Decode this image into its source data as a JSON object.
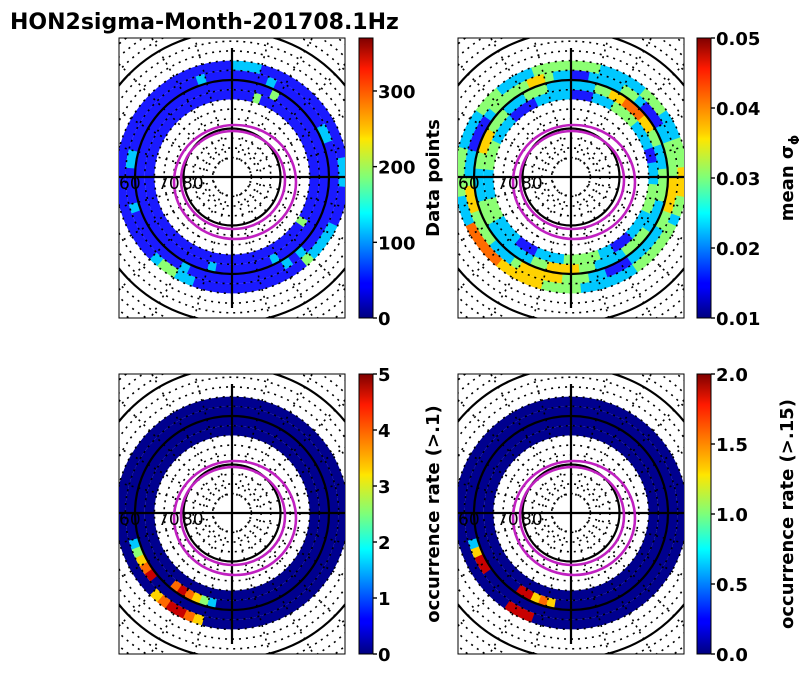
{
  "title": "HON2sigma-Month-201708.1Hz",
  "chart_data": [
    {
      "type": "polar-grid",
      "name": "data-points",
      "colorbar": {
        "label": "Data points",
        "min": 0,
        "max": 370,
        "ticks": [
          {
            "v": 0,
            "t": "0"
          },
          {
            "v": 100,
            "t": "100"
          },
          {
            "v": 200,
            "t": "200"
          },
          {
            "v": 300,
            "t": "300"
          }
        ]
      },
      "lat_labels": [
        "60",
        "70",
        "80"
      ],
      "colors": {
        "0": "#1a1aff",
        "1": "#00c8ff",
        "2": "#8cff73",
        "3": "#ffd200"
      },
      "rings": [
        {
          "r_lat": 66,
          "cells": "111000000000000011100001111200000000000011221000000000000000000000000000"
        },
        {
          "r_lat": 68,
          "cells": "000010000000110000000000000101000000000001000000001000011000000000001000"
        },
        {
          "r_lat": 70,
          "cells": "000002000000000000000000000000100000001000000000000000000000000000000000"
        },
        {
          "r_lat": 72,
          "cells": "000200000000000000000000200000000000000000000000000000000000000000000000"
        }
      ]
    },
    {
      "type": "polar-grid",
      "name": "mean-sigma-phi",
      "colorbar": {
        "label": "mean σ",
        "label_sub": "ϕ",
        "min": 0.01,
        "max": 0.05,
        "ticks": [
          {
            "v": 0.01,
            "t": "0.01"
          },
          {
            "v": 0.02,
            "t": "0.02"
          },
          {
            "v": 0.03,
            "t": "0.03"
          },
          {
            "v": 0.04,
            "t": "0.04"
          },
          {
            "v": 0.05,
            "t": "0.05"
          }
        ]
      },
      "lat_labels": [
        "60",
        "70",
        "80"
      ],
      "colors": {
        "0": "#1a1aff",
        "1": "#00c8ff",
        "2": "#8cff73",
        "3": "#ffd200",
        "4": "#ff6a00",
        "5": "#c80000"
      },
      "rings": [
        {
          "r_lat": 66,
          "cells": "222111112221112223332212222221111112222333334444411122222111122211112222"
        },
        {
          "r_lat": 68,
          "cells": "001111221000112222333322111110001122233333211122223332111000012222233211"
        },
        {
          "r_lat": 70,
          "cells": "111223344433221112222111122221111223333221111111222111122333222111222111"
        },
        {
          "r_lat": 72,
          "cells": "000111222211110011122221111000112222211110001111222111122221111000011111"
        }
      ]
    },
    {
      "type": "polar-grid",
      "name": "occurrence-rate-01",
      "colorbar": {
        "label": "occurrence rate (>.1)",
        "min": 0,
        "max": 5,
        "ticks": [
          {
            "v": 0,
            "t": "0"
          },
          {
            "v": 1,
            "t": "1"
          },
          {
            "v": 2,
            "t": "2"
          },
          {
            "v": 3,
            "t": "3"
          },
          {
            "v": 4,
            "t": "4"
          },
          {
            "v": 5,
            "t": "5"
          }
        ]
      },
      "lat_labels": [
        "60",
        "70",
        "80"
      ],
      "colors": {
        "0": "#00008f",
        "1": "#00c8ff",
        "2": "#8cff73",
        "3": "#ffd200",
        "4": "#ff6a00",
        "5": "#c80000"
      },
      "rings": [
        {
          "r_lat": 66,
          "cells": "000000000000000000000000000000000000000345543000000000000000000000000000"
        },
        {
          "r_lat": 68,
          "cells": "000000000000000000000000000000000000000000000054321000000000000000000000"
        },
        {
          "r_lat": 70,
          "cells": "000000000000000000000000000000000000001234540000000000000000000000000000"
        },
        {
          "r_lat": 72,
          "cells": "000000000000000000000000000000000000000000000000000000000000000000000000"
        }
      ]
    },
    {
      "type": "polar-grid",
      "name": "occurrence-rate-015",
      "colorbar": {
        "label": "occurrence rate (>.15)",
        "min": 0,
        "max": 2,
        "ticks": [
          {
            "v": 0,
            "t": "0.0"
          },
          {
            "v": 0.5,
            "t": "0.5"
          },
          {
            "v": 1,
            "t": "1.0"
          },
          {
            "v": 1.5,
            "t": "1.5"
          },
          {
            "v": 2,
            "t": "2.0"
          }
        ]
      },
      "lat_labels": [
        "60",
        "70",
        "80"
      ],
      "colors": {
        "0": "#00008f",
        "1": "#00c8ff",
        "2": "#8cff73",
        "3": "#ffd200",
        "4": "#ff6a00",
        "5": "#c80000"
      },
      "rings": [
        {
          "r_lat": 66,
          "cells": "000000000000000000000000000000000000000055500000000000000000000000000000"
        },
        {
          "r_lat": 68,
          "cells": "000000000000000000000000000000000000000000000005531000000000000000000000"
        },
        {
          "r_lat": 70,
          "cells": "000000000000000000000000000000000000003435500000000000000000000000000000"
        },
        {
          "r_lat": 72,
          "cells": "000000000000000000000000000000000000000000000000000000000000000000000000"
        }
      ]
    }
  ]
}
